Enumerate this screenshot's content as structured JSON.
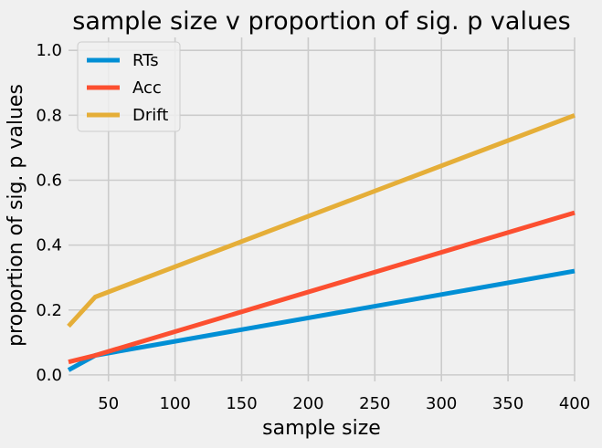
{
  "chart_data": {
    "type": "line",
    "title": "sample size v proportion of sig. p values",
    "xlabel": "sample size",
    "ylabel": "proportion of sig. p values",
    "xlim": [
      20,
      400
    ],
    "ylim": [
      -0.02,
      1.04
    ],
    "xticks": [
      50,
      100,
      150,
      200,
      250,
      300,
      350,
      400
    ],
    "yticks": [
      0.0,
      0.2,
      0.4,
      0.6,
      0.8,
      1.0
    ],
    "xtick_labels": [
      "50",
      "100",
      "150",
      "200",
      "250",
      "300",
      "350",
      "400"
    ],
    "ytick_labels": [
      "0.0",
      "0.2",
      "0.4",
      "0.6",
      "0.8",
      "1.0"
    ],
    "grid": true,
    "legend_position": "top-left",
    "background_color": "#f0f0f0",
    "series": [
      {
        "name": "RTs",
        "color": "#008fd5",
        "x": [
          20,
          40,
          400
        ],
        "y": [
          0.015,
          0.06,
          0.32
        ]
      },
      {
        "name": "Acc",
        "color": "#fc4f30",
        "x": [
          20,
          40,
          400
        ],
        "y": [
          0.04,
          0.06,
          0.5
        ]
      },
      {
        "name": "Drift",
        "color": "#e5ae38",
        "x": [
          20,
          40,
          400
        ],
        "y": [
          0.15,
          0.24,
          0.8
        ]
      }
    ]
  }
}
